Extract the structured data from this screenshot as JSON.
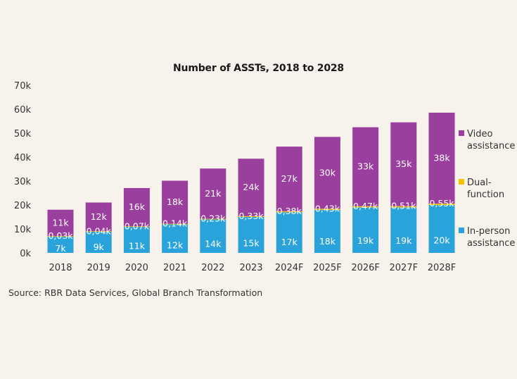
{
  "chart_data": {
    "type": "bar",
    "stacked": true,
    "title": "Number of ASSTs, 2018 to 2028",
    "categories": [
      "2018",
      "2019",
      "2020",
      "2021",
      "2022",
      "2023",
      "2024F",
      "2025F",
      "2026F",
      "2027F",
      "2028F"
    ],
    "series": [
      {
        "name": "In-person assistance",
        "legend_lines": [
          "In-person",
          "assistance"
        ],
        "color": "#2aa3db",
        "values": [
          7,
          9,
          11,
          12,
          14,
          15,
          17,
          18,
          19,
          19,
          20
        ],
        "labels": [
          "7k",
          "9k",
          "11k",
          "12k",
          "14k",
          "15k",
          "17k",
          "18k",
          "19k",
          "19k",
          "20k"
        ]
      },
      {
        "name": "Dual-function",
        "legend_lines": [
          "Dual-",
          "function"
        ],
        "color": "#f5c400",
        "values": [
          0.03,
          0.04,
          0.07,
          0.14,
          0.23,
          0.33,
          0.38,
          0.43,
          0.47,
          0.51,
          0.55
        ],
        "labels": [
          "0,03k",
          "0,04k",
          "0,07k",
          "0,14k",
          "0,23k",
          "0,33k",
          "0,38k",
          "0,43k",
          "0,47k",
          "0,51k",
          "0,55k"
        ]
      },
      {
        "name": "Video assistance",
        "legend_lines": [
          "Video",
          "assistance"
        ],
        "color": "#9b3f9e",
        "values": [
          11,
          12,
          16,
          18,
          21,
          24,
          27,
          30,
          33,
          35,
          38
        ],
        "labels": [
          "11k",
          "12k",
          "16k",
          "18k",
          "21k",
          "24k",
          "27k",
          "30k",
          "33k",
          "35k",
          "38k"
        ]
      }
    ],
    "y_ticks": [
      0,
      10,
      20,
      30,
      40,
      50,
      60,
      70
    ],
    "y_tick_labels": [
      "0k",
      "10k",
      "20k",
      "30k",
      "40k",
      "50k",
      "60k",
      "70k"
    ],
    "ylim": [
      0,
      70
    ],
    "grid": false,
    "legend_position": "right"
  },
  "source": "Source: RBR Data Services, Global Branch Transformation"
}
